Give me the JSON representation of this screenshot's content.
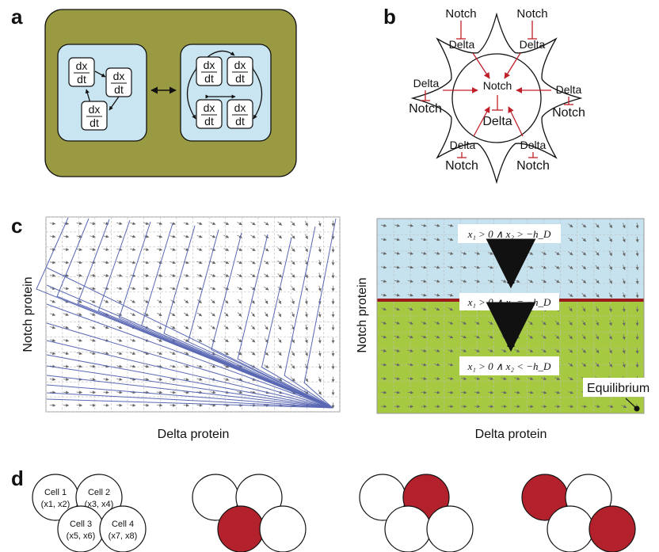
{
  "panels": {
    "a": "a",
    "b": "b",
    "c": "c",
    "d": "d"
  },
  "panel_a": {
    "node_num": "dx",
    "node_den": "dt"
  },
  "panel_b": {
    "center_notch": "Notch",
    "center_delta": "Delta",
    "notch": "Notch",
    "delta": "Delta"
  },
  "panel_c": {
    "xlabel": "Delta protein",
    "ylabel": "Notch protein",
    "cond_upper": "x₁ > 0 ∧ x₂ > −h_D",
    "cond_middle": "x₁ > 0 ∧ x₂ = −h_D",
    "cond_lower": "x₁ > 0 ∧ x₂ < −h_D",
    "equilibrium": "Equilibrium",
    "colors": {
      "upper_region": "#c6e2ee",
      "lower_region": "#a6c942",
      "boundary": "#9b1c1c"
    }
  },
  "panel_d": {
    "cells": [
      {
        "name": "Cell 1",
        "vars": "(x1, x2)"
      },
      {
        "name": "Cell 2",
        "vars": "(x3, x4)"
      },
      {
        "name": "Cell 3",
        "vars": "(x5, x6)"
      },
      {
        "name": "Cell 4",
        "vars": "(x7, x8)"
      }
    ],
    "fill_color": "#b3222c"
  }
}
